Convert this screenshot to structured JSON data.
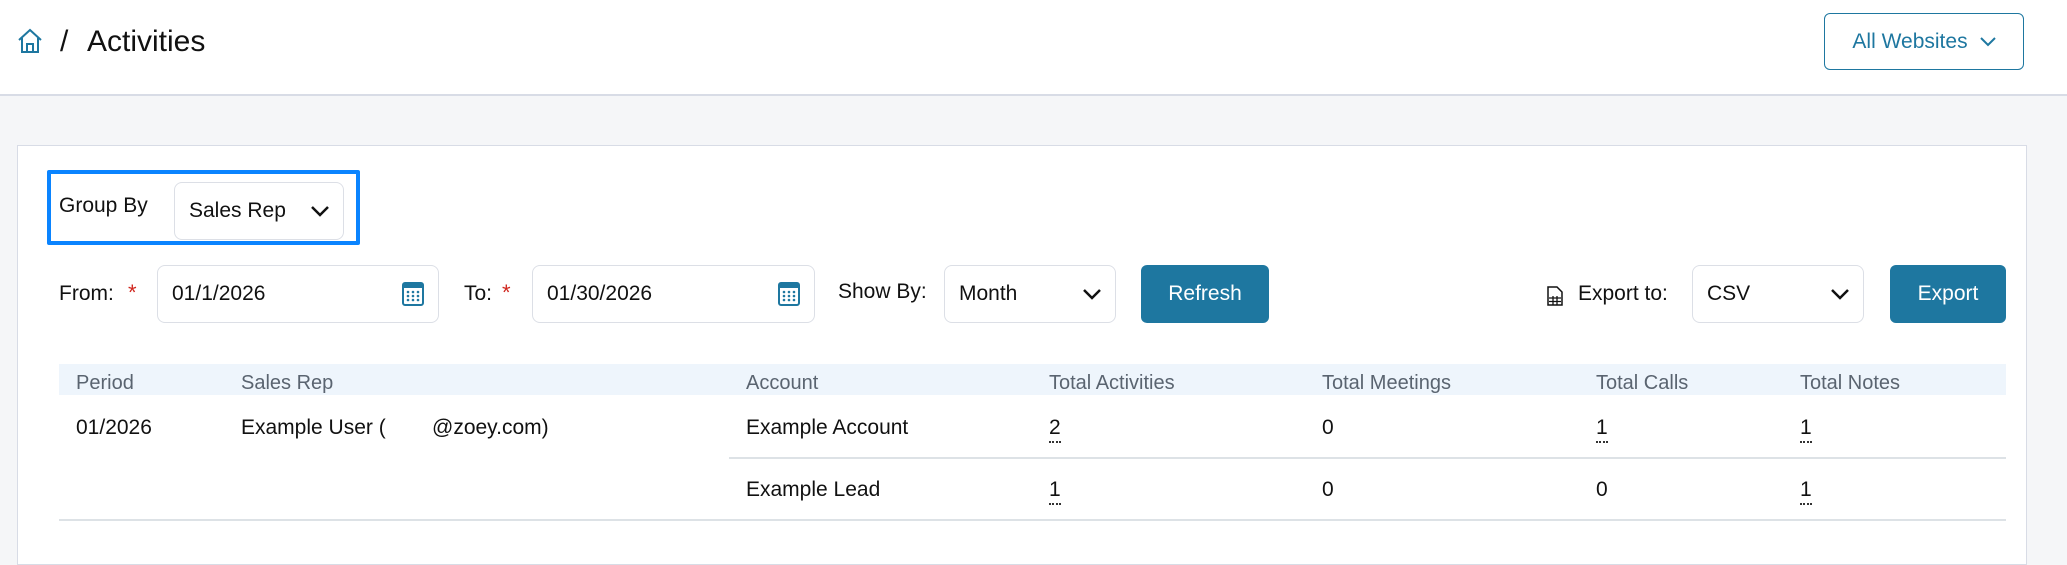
{
  "header": {
    "home_icon": "home-icon",
    "separator": "/",
    "title": "Activities",
    "website_selector": "All Websites"
  },
  "filters": {
    "group_by_label": "Group By",
    "group_by_value": "Sales Rep",
    "from_label": "From:",
    "from_value": "01/1/2026",
    "to_label": "To:",
    "to_value": "01/30/2026",
    "required_mark": "*",
    "show_by_label": "Show By:",
    "show_by_value": "Month",
    "refresh_label": "Refresh",
    "export_to_label": "Export to:",
    "export_format": "CSV",
    "export_label": "Export"
  },
  "colors": {
    "accent": "#1e77a0",
    "highlight": "#0a84ff",
    "required": "#d0261e"
  },
  "table": {
    "columns": [
      "Period",
      "Sales Rep",
      "Account",
      "Total Activities",
      "Total Meetings",
      "Total Calls",
      "Total Notes"
    ],
    "group": {
      "period": "01/2026",
      "sales_rep_prefix": "Example User (",
      "sales_rep_suffix": "@zoey.com)"
    },
    "rows": [
      {
        "account": "Example Account",
        "total_activities": "2",
        "total_meetings": "0",
        "total_calls": "1",
        "total_notes": "1"
      },
      {
        "account": "Example Lead",
        "total_activities": "1",
        "total_meetings": "0",
        "total_calls": "0",
        "total_notes": "1"
      }
    ]
  }
}
